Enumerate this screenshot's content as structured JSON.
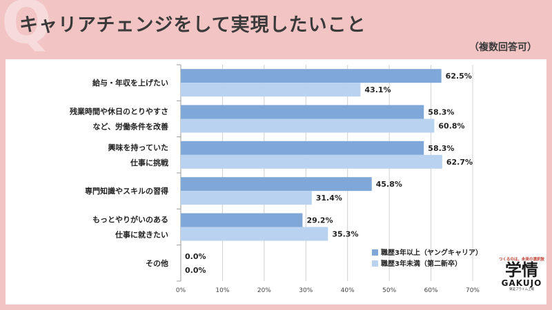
{
  "header": {
    "q_mark": "Q",
    "title": "キャリアチェンジをして実現したいこと",
    "subtitle": "（複数回答可）"
  },
  "colors": {
    "series_young": "#7fa7d8",
    "series_second": "#b9d2ef",
    "background": "#f2c4c4"
  },
  "chart_data": {
    "type": "bar",
    "orientation": "horizontal",
    "categories": [
      [
        "給与・年収を上げたい"
      ],
      [
        "残業時間や休日のとりやすさ",
        "など、労働条件を改善"
      ],
      [
        "興味を持っていた",
        "仕事に挑戦"
      ],
      [
        "専門知識やスキルの習得"
      ],
      [
        "もっとやりがいのある",
        "仕事に就きたい"
      ],
      [
        "その他"
      ]
    ],
    "series": [
      {
        "name": "職歴3年以上（ヤングキャリア）",
        "values": [
          62.5,
          58.3,
          58.3,
          45.8,
          29.2,
          0.0
        ]
      },
      {
        "name": "職歴3年未満（第二新卒）",
        "values": [
          43.1,
          60.8,
          62.7,
          31.4,
          35.3,
          0.0
        ]
      }
    ],
    "value_format": "%",
    "xlim": [
      0,
      70
    ],
    "xticks": [
      0,
      10,
      20,
      30,
      40,
      50,
      60,
      70
    ],
    "xtick_labels": [
      "0%",
      "10%",
      "20%",
      "30%",
      "40%",
      "50%",
      "60%",
      "70%"
    ],
    "grid": true,
    "legend_placement": "bottom-right"
  },
  "logo": {
    "tagline": "つくるのは、未来の選択肢",
    "main": "学情",
    "sub": "GAKUJO",
    "tiny": "東証プライム上場"
  }
}
